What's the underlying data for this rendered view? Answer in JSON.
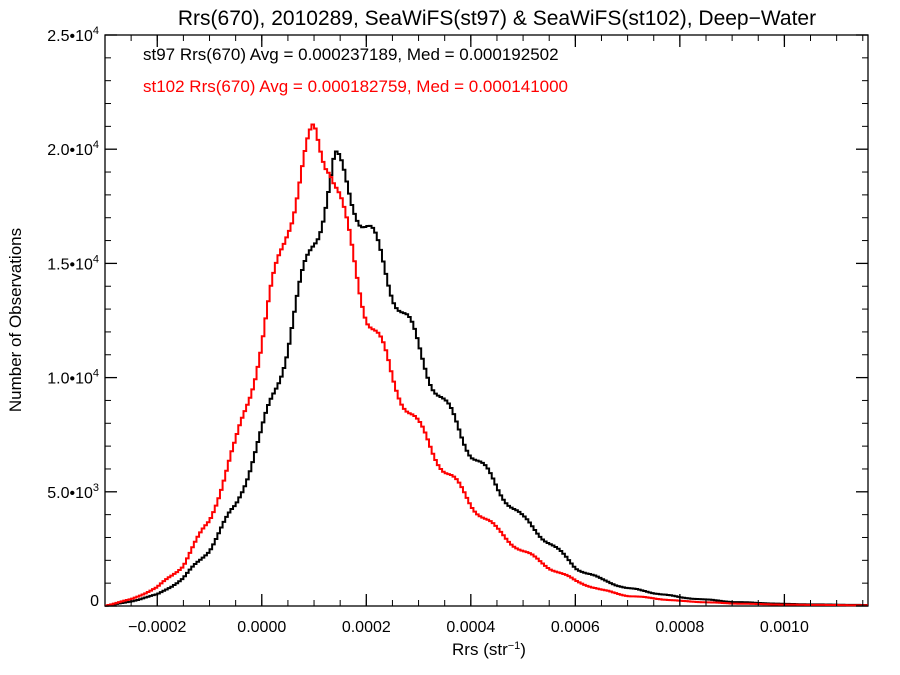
{
  "chart_data": {
    "type": "histogram",
    "title": "Rrs(670), 2010289, SeaWiFS(st97) & SeaWiFS(st102), Deep−Water",
    "xlabel": "Rrs (str",
    "xlabel_sup": "−1",
    "xlabel_close": ")",
    "ylabel": "Number of Observations",
    "xlim": [
      -0.0003,
      0.00116
    ],
    "ylim": [
      0,
      25000
    ],
    "grid": false,
    "legend_position": "top-left",
    "x_ticks": [
      {
        "value": -0.0002,
        "label": "−0.0002"
      },
      {
        "value": 0.0,
        "label": "0.0000"
      },
      {
        "value": 0.0002,
        "label": "0.0002"
      },
      {
        "value": 0.0004,
        "label": "0.0004"
      },
      {
        "value": 0.0006,
        "label": "0.0006"
      },
      {
        "value": 0.0008,
        "label": "0.0008"
      },
      {
        "value": 0.001,
        "label": "0.0010"
      }
    ],
    "y_ticks": [
      {
        "value": 0,
        "mant": "0",
        "exp": ""
      },
      {
        "value": 5000,
        "mant": "5.0•10",
        "exp": "3"
      },
      {
        "value": 10000,
        "mant": "1.0•10",
        "exp": "4"
      },
      {
        "value": 15000,
        "mant": "1.5•10",
        "exp": "4"
      },
      {
        "value": 20000,
        "mant": "2.0•10",
        "exp": "4"
      },
      {
        "value": 25000,
        "mant": "2.5•10",
        "exp": "4"
      }
    ],
    "series": [
      {
        "name": "st97",
        "legend": "st97 Rrs(670) Avg = 0.000237189, Med = 0.000192502",
        "color": "#000000",
        "avg": 0.000237189,
        "median": 0.000192502,
        "profile": [
          [
            -0.0003,
            0
          ],
          [
            -0.00025,
            200
          ],
          [
            -0.0002,
            500
          ],
          [
            -0.00015,
            1200
          ],
          [
            -0.0001,
            2500
          ],
          [
            -5e-05,
            4400
          ],
          [
            0.0,
            7500
          ],
          [
            5e-05,
            11500
          ],
          [
            0.0001,
            16200
          ],
          [
            0.00014,
            19200
          ],
          [
            0.00018,
            17800
          ],
          [
            0.00022,
            15500
          ],
          [
            0.00026,
            13500
          ],
          [
            0.0003,
            11200
          ],
          [
            0.00035,
            8800
          ],
          [
            0.0004,
            6800
          ],
          [
            0.00045,
            5200
          ],
          [
            0.0005,
            3800
          ],
          [
            0.00055,
            2800
          ],
          [
            0.0006,
            1700
          ],
          [
            0.00065,
            1150
          ],
          [
            0.0007,
            780
          ],
          [
            0.0008,
            380
          ],
          [
            0.0009,
            180
          ],
          [
            0.001,
            90
          ],
          [
            0.00116,
            40
          ]
        ]
      },
      {
        "name": "st102",
        "legend": "st102 Rrs(670) Avg = 0.000182759, Med = 0.000141000",
        "color": "#ff0000",
        "avg": 0.000182759,
        "median": 0.000141,
        "profile": [
          [
            -0.0003,
            0
          ],
          [
            -0.00025,
            300
          ],
          [
            -0.0002,
            800
          ],
          [
            -0.00015,
            1800
          ],
          [
            -0.0001,
            3800
          ],
          [
            -5e-05,
            7000
          ],
          [
            0.0,
            11500
          ],
          [
            5e-05,
            17000
          ],
          [
            0.0001,
            20500
          ],
          [
            0.00013,
            19800
          ],
          [
            0.00016,
            16500
          ],
          [
            0.0002,
            13000
          ],
          [
            0.00025,
            10000
          ],
          [
            0.0003,
            7800
          ],
          [
            0.00035,
            6000
          ],
          [
            0.0004,
            4500
          ],
          [
            0.00045,
            3300
          ],
          [
            0.0005,
            2400
          ],
          [
            0.00055,
            1700
          ],
          [
            0.0006,
            1100
          ],
          [
            0.00065,
            700
          ],
          [
            0.0007,
            450
          ],
          [
            0.0008,
            220
          ],
          [
            0.0009,
            110
          ],
          [
            0.001,
            60
          ],
          [
            0.00116,
            30
          ]
        ]
      }
    ]
  }
}
